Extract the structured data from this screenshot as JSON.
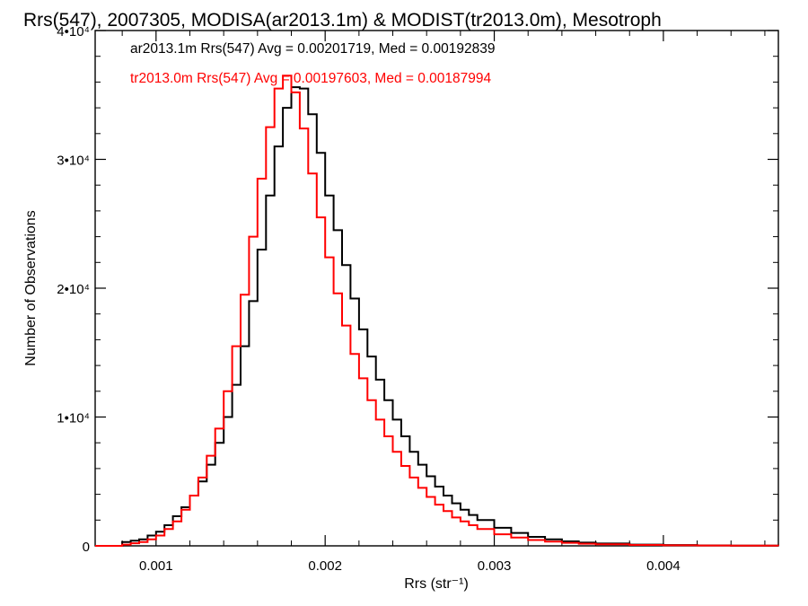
{
  "chart_data": {
    "type": "line",
    "title": "Rrs(547), 2007305, MODISA(ar2013.1m) & MODIST(tr2013.0m), Mesotroph",
    "xlabel": "Rrs (str⁻¹)",
    "ylabel": "Number of Observations",
    "xlim": [
      0.00064,
      0.00468
    ],
    "ylim": [
      0,
      40000
    ],
    "x_ticks": [
      {
        "value": 0.001,
        "label": "0.001"
      },
      {
        "value": 0.002,
        "label": "0.002"
      },
      {
        "value": 0.003,
        "label": "0.003"
      },
      {
        "value": 0.004,
        "label": "0.004"
      }
    ],
    "y_ticks": [
      {
        "value": 0,
        "label": "0"
      },
      {
        "value": 10000,
        "label": "1•10⁴"
      },
      {
        "value": 20000,
        "label": "2•10⁴"
      },
      {
        "value": 30000,
        "label": "3•10⁴"
      },
      {
        "value": 40000,
        "label": "4•10⁴"
      }
    ],
    "legend_placement": "top-left",
    "grid": false,
    "series": [
      {
        "name": "ar2013.1m",
        "color": "#000000",
        "legend_text": "ar2013.1m Rrs(547) Avg = 0.00201719, Med = 0.00192839",
        "x": [
          0.00064,
          0.00075,
          0.0008,
          0.00085,
          0.0009,
          0.00095,
          0.001,
          0.00105,
          0.0011,
          0.00115,
          0.0012,
          0.00125,
          0.0013,
          0.00135,
          0.0014,
          0.00145,
          0.0015,
          0.00155,
          0.0016,
          0.00165,
          0.0017,
          0.00175,
          0.0018,
          0.00185,
          0.0019,
          0.00195,
          0.002,
          0.00205,
          0.0021,
          0.00215,
          0.0022,
          0.00225,
          0.0023,
          0.00235,
          0.0024,
          0.00245,
          0.0025,
          0.00255,
          0.0026,
          0.00265,
          0.0027,
          0.00275,
          0.0028,
          0.00285,
          0.0029,
          0.003,
          0.0031,
          0.0032,
          0.0033,
          0.0034,
          0.0035,
          0.0036,
          0.0038,
          0.004,
          0.0042,
          0.0044,
          0.00468
        ],
        "y": [
          0,
          0,
          300,
          400,
          500,
          800,
          1100,
          1600,
          2300,
          3000,
          3900,
          5000,
          6300,
          8000,
          10000,
          12500,
          15500,
          19000,
          23000,
          27200,
          31000,
          34000,
          35600,
          35500,
          33500,
          30500,
          27200,
          24500,
          21800,
          19200,
          16800,
          14700,
          12900,
          11300,
          9800,
          8500,
          7300,
          6300,
          5400,
          4600,
          3900,
          3300,
          2800,
          2400,
          2000,
          1400,
          1000,
          700,
          500,
          350,
          250,
          180,
          100,
          60,
          35,
          20,
          10
        ]
      },
      {
        "name": "tr2013.0m",
        "color": "#ff0000",
        "legend_text": "tr2013.0m Rrs(547) Avg = 0.00197603, Med = 0.00187994",
        "x": [
          0.00064,
          0.00075,
          0.0008,
          0.00085,
          0.0009,
          0.00095,
          0.001,
          0.00105,
          0.0011,
          0.00115,
          0.0012,
          0.00125,
          0.0013,
          0.00135,
          0.0014,
          0.00145,
          0.0015,
          0.00155,
          0.0016,
          0.00165,
          0.0017,
          0.00175,
          0.0018,
          0.00185,
          0.0019,
          0.00195,
          0.002,
          0.00205,
          0.0021,
          0.00215,
          0.0022,
          0.00225,
          0.0023,
          0.00235,
          0.0024,
          0.00245,
          0.0025,
          0.00255,
          0.0026,
          0.00265,
          0.0027,
          0.00275,
          0.0028,
          0.00285,
          0.0029,
          0.003,
          0.0031,
          0.0032,
          0.0033,
          0.0034,
          0.0035,
          0.0036,
          0.0038,
          0.004,
          0.0042,
          0.0044,
          0.00468
        ],
        "y": [
          0,
          0,
          100,
          200,
          300,
          500,
          800,
          1300,
          1900,
          2800,
          3900,
          5300,
          7000,
          9100,
          12000,
          15500,
          19500,
          24000,
          28500,
          32500,
          35500,
          36500,
          35200,
          32400,
          28900,
          25500,
          22400,
          19600,
          17100,
          14900,
          13000,
          11300,
          9800,
          8500,
          7300,
          6200,
          5300,
          4500,
          3800,
          3200,
          2700,
          2200,
          1900,
          1600,
          1300,
          900,
          650,
          450,
          330,
          240,
          170,
          120,
          70,
          40,
          25,
          15,
          8
        ]
      }
    ]
  }
}
